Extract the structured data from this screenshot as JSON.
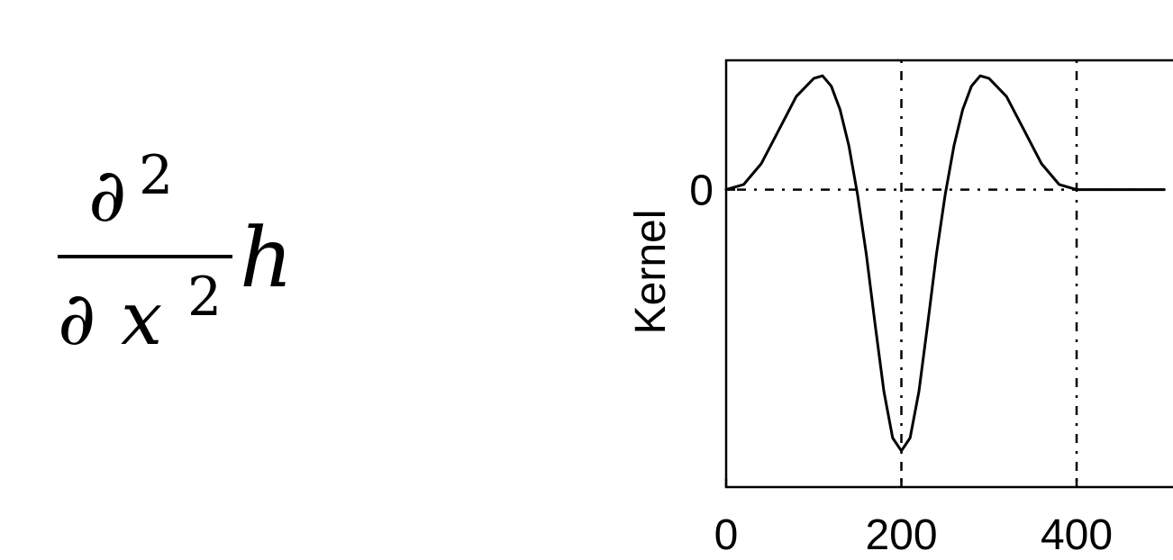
{
  "formula": {
    "numerator_symbol": "∂",
    "numerator_power": "2",
    "denominator_symbol": "∂",
    "denominator_variable": "x",
    "denominator_power": "2",
    "operand": "h"
  },
  "chart_data": {
    "type": "line",
    "title": "",
    "xlabel": "",
    "ylabel": "Kernel",
    "xlim": [
      0,
      510
    ],
    "ylim": [
      -1.15,
      0.5
    ],
    "x_ticks": [
      0,
      200,
      400
    ],
    "x_tick_labels": [
      "0",
      "200",
      "400"
    ],
    "y_ticks": [
      0
    ],
    "y_tick_labels": [
      "0"
    ],
    "grid": true,
    "grid_style": "dotted",
    "line_color": "#000000",
    "series": [
      {
        "x": [
          0,
          20,
          40,
          60,
          80,
          100,
          110,
          120,
          130,
          140,
          150,
          160,
          170,
          180,
          190,
          200,
          210,
          220,
          230,
          240,
          250,
          260,
          270,
          280,
          290,
          300,
          320,
          340,
          360,
          380,
          400,
          420,
          440,
          460,
          480,
          500
        ],
        "values": [
          0,
          0.02,
          0.1,
          0.23,
          0.36,
          0.43,
          0.44,
          0.4,
          0.31,
          0.17,
          -0.02,
          -0.25,
          -0.52,
          -0.78,
          -0.96,
          -1.01,
          -0.96,
          -0.78,
          -0.52,
          -0.25,
          -0.02,
          0.17,
          0.31,
          0.4,
          0.44,
          0.43,
          0.36,
          0.23,
          0.1,
          0.02,
          0,
          0,
          0,
          0,
          0,
          0
        ]
      }
    ]
  }
}
